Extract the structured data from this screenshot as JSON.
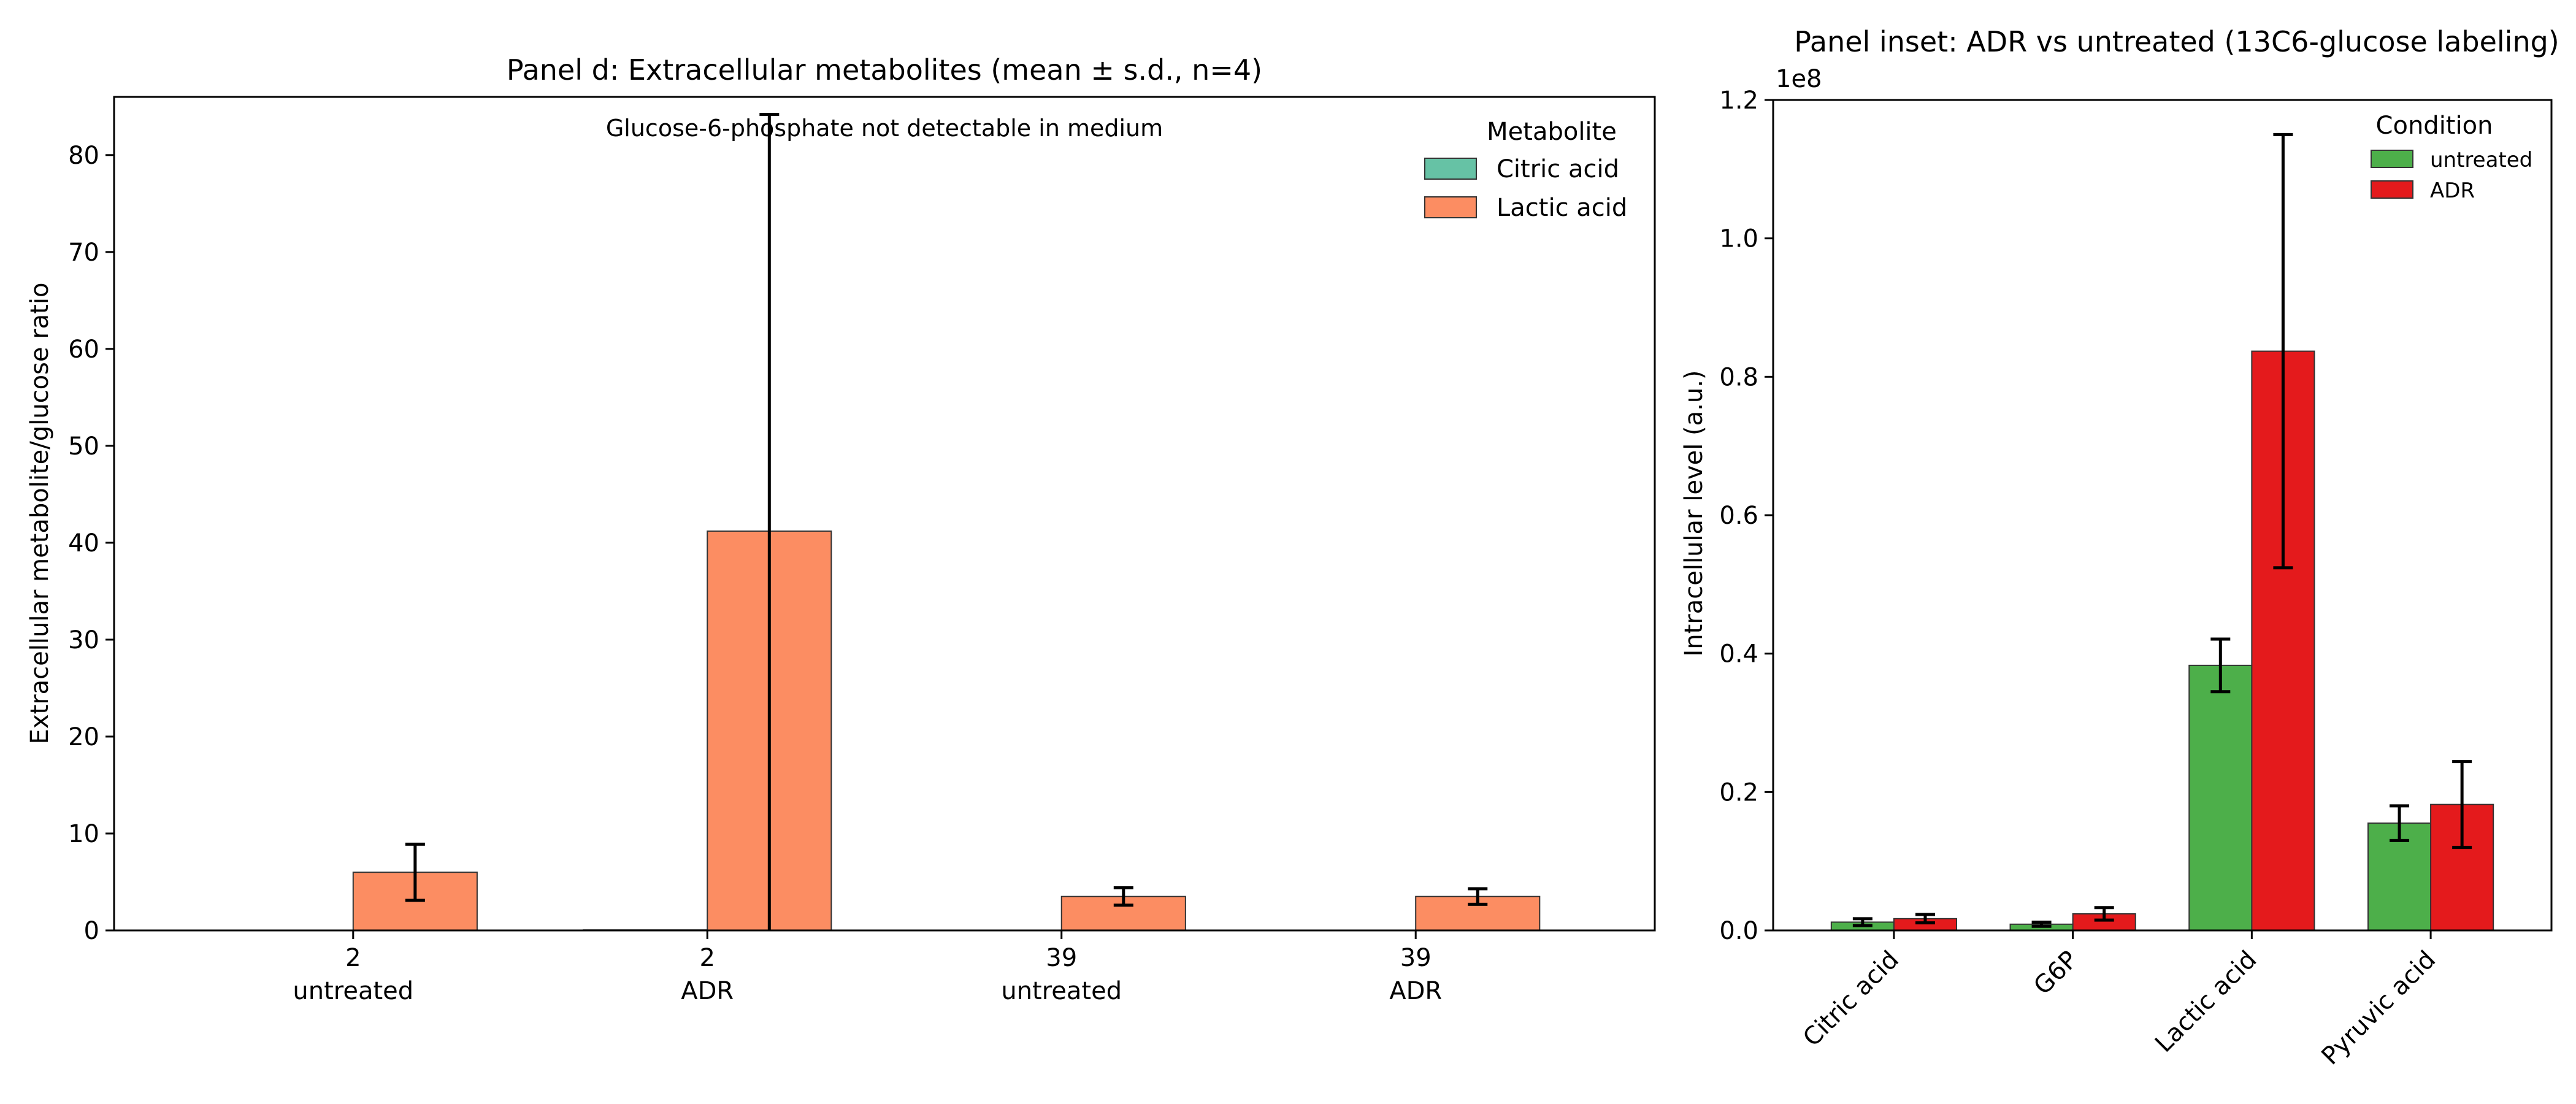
{
  "chart_data": [
    {
      "type": "bar",
      "title": "Panel d: Extracellular metabolites (mean ± s.d., n=4)",
      "xlabel": "",
      "ylabel": "Extracellular metabolite/glucose ratio",
      "ylim": [
        0,
        86
      ],
      "yticks": [
        0,
        10,
        20,
        30,
        40,
        50,
        60,
        70,
        80
      ],
      "categories": [
        {
          "line1": "2",
          "line2": "untreated"
        },
        {
          "line1": "2",
          "line2": "ADR"
        },
        {
          "line1": "39",
          "line2": "untreated"
        },
        {
          "line1": "39",
          "line2": "ADR"
        }
      ],
      "series": [
        {
          "name": "Citric acid",
          "color": "#66c2a5",
          "values": [
            0.03,
            0.05,
            0.02,
            0.02
          ],
          "errors": [
            0,
            0,
            0,
            0
          ]
        },
        {
          "name": "Lactic acid",
          "color": "#fc8d62",
          "values": [
            6.0,
            41.2,
            3.5,
            3.5
          ],
          "errors": [
            2.9,
            43.0,
            0.9,
            0.8
          ]
        }
      ],
      "annotation": "Glucose-6-phosphate not detectable in medium",
      "legend": {
        "title": "Metabolite",
        "placement": "top-right"
      },
      "grid": false
    },
    {
      "type": "bar",
      "title": "Panel inset: ADR vs untreated (13C6-glucose labeling)",
      "xlabel": "",
      "ylabel": "Intracellular level (a.u.)",
      "scale_label": "1e8",
      "ylim": [
        0,
        1.2
      ],
      "yticks": [
        "0.0",
        "0.2",
        "0.4",
        "0.6",
        "0.8",
        "1.0",
        "1.2"
      ],
      "categories": [
        "Citric acid",
        "G6P",
        "Lactic acid",
        "Pyruvic acid"
      ],
      "series": [
        {
          "name": "untreated",
          "color": "#4daf4a",
          "values": [
            0.012,
            0.009,
            0.383,
            0.155
          ],
          "errors": [
            0.005,
            0.003,
            0.038,
            0.025
          ]
        },
        {
          "name": "ADR",
          "color": "#e41a1c",
          "values": [
            0.017,
            0.024,
            0.837,
            0.182
          ],
          "errors": [
            0.006,
            0.009,
            0.313,
            0.062
          ]
        }
      ],
      "legend": {
        "title": "Condition",
        "placement": "top-right"
      },
      "grid": false
    }
  ]
}
